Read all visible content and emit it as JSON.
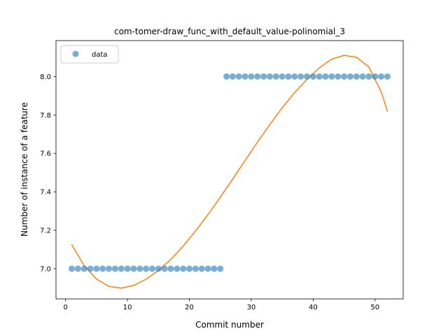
{
  "chart_data": {
    "type": "scatter",
    "title": "com-tomer-draw_func_with_default_value-polinomial_3",
    "xlabel": "Commit number",
    "ylabel": "Number of instance of a feature",
    "xlim": [
      -1.55,
      54.55
    ],
    "ylim": [
      6.843,
      8.187
    ],
    "x_ticks": [
      0,
      10,
      20,
      30,
      40,
      50
    ],
    "y_ticks": [
      7.0,
      7.2,
      7.4,
      7.6,
      7.8,
      8.0
    ],
    "x_tick_labels": [
      "0",
      "10",
      "20",
      "30",
      "40",
      "50"
    ],
    "y_tick_labels": [
      "7.0",
      "7.2",
      "7.4",
      "7.6",
      "7.8",
      "8.0"
    ],
    "legend": {
      "position": "upper-left",
      "entries": [
        "data"
      ]
    },
    "series": [
      {
        "name": "data",
        "kind": "scatter",
        "color": "#1f77b4",
        "x": [
          1,
          2,
          3,
          4,
          5,
          6,
          7,
          8,
          9,
          10,
          11,
          12,
          13,
          14,
          15,
          16,
          17,
          18,
          19,
          20,
          21,
          22,
          23,
          24,
          25,
          26,
          27,
          28,
          29,
          30,
          31,
          32,
          33,
          34,
          35,
          36,
          37,
          38,
          39,
          40,
          41,
          42,
          43,
          44,
          45,
          46,
          47,
          48,
          49,
          50,
          51,
          52
        ],
        "y": [
          7,
          7,
          7,
          7,
          7,
          7,
          7,
          7,
          7,
          7,
          7,
          7,
          7,
          7,
          7,
          7,
          7,
          7,
          7,
          7,
          7,
          7,
          7,
          7,
          7,
          8,
          8,
          8,
          8,
          8,
          8,
          8,
          8,
          8,
          8,
          8,
          8,
          8,
          8,
          8,
          8,
          8,
          8,
          8,
          8,
          8,
          8,
          8,
          8,
          8,
          8,
          8
        ]
      },
      {
        "kind": "line",
        "color": "#ff7f0e",
        "x": [
          1,
          3,
          5,
          7,
          9,
          11,
          13,
          15,
          17,
          19,
          21,
          23,
          25,
          27,
          29,
          31,
          33,
          35,
          37,
          39,
          41,
          43,
          45,
          47,
          49,
          51,
          52
        ],
        "y": [
          7.125,
          7.016,
          6.946,
          6.908,
          6.899,
          6.913,
          6.945,
          6.991,
          7.048,
          7.118,
          7.196,
          7.281,
          7.372,
          7.466,
          7.563,
          7.658,
          7.75,
          7.837,
          7.916,
          7.985,
          8.045,
          8.09,
          8.11,
          8.1,
          8.05,
          7.92,
          7.82
        ]
      }
    ]
  }
}
